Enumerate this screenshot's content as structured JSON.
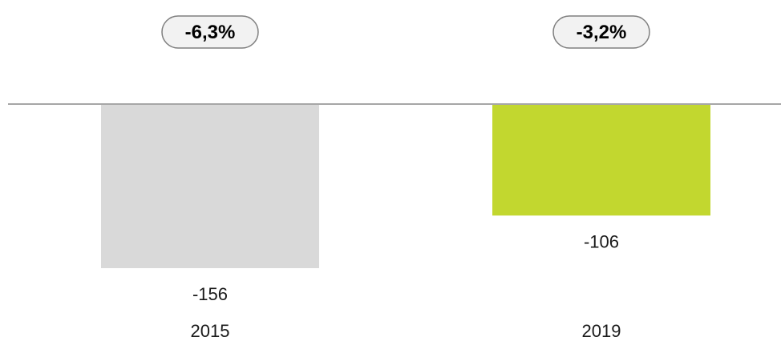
{
  "chart_data": {
    "type": "bar",
    "categories": [
      "2015",
      "2019"
    ],
    "values": [
      -156,
      -106
    ],
    "value_labels": [
      "-156",
      "-106"
    ],
    "change_labels": [
      "-6,3%",
      "-3,2%"
    ],
    "title": "",
    "xlabel": "",
    "ylabel": "",
    "ylim": [
      -160,
      0
    ],
    "colors": [
      "#d9d9d9",
      "#c2d72f"
    ],
    "axis_color": "#a6a6a6",
    "badge_fill": "#f2f2f2",
    "badge_stroke": "#7f7f7f",
    "grid": false,
    "legend": "none"
  }
}
